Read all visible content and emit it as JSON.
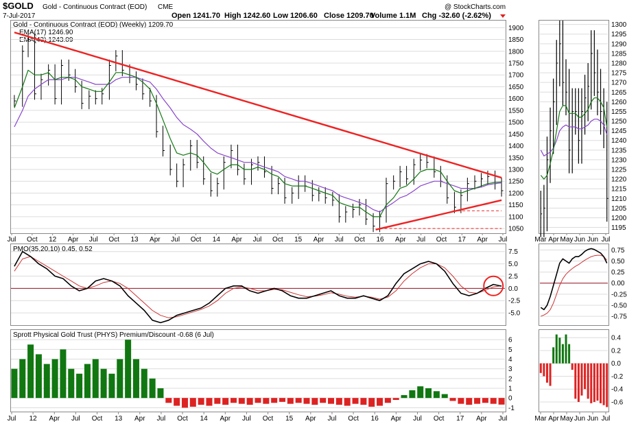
{
  "header": {
    "symbol": "$GOLD",
    "name": "Gold - Continuous Contract (EOD)",
    "exchange": "CME",
    "date": "7-Jul-2017",
    "open": "Open 1241.70",
    "high": "High 1242.60",
    "low": "Low 1206.60",
    "close": "Close 1209.70",
    "volume": "Volume 1.1M",
    "chg": "Chg -32.60 (-2.62%)",
    "watermark": "@ StockCharts.com"
  },
  "chart_data": [
    {
      "type": "line",
      "panel": "price-weekly",
      "title": "Gold - Continuous Contract (EOD) (Weekly) 1209.70",
      "legend": [
        "EMA(17) 1246.90",
        "EMA(43) 1243.09"
      ],
      "y_ticks": [
        1050,
        1100,
        1150,
        1200,
        1250,
        1300,
        1350,
        1400,
        1450,
        1500,
        1550,
        1600,
        1650,
        1700,
        1750,
        1800,
        1850,
        1900
      ],
      "ylim": [
        1030,
        1930
      ],
      "x_labels": [
        "Jul",
        "Oct",
        "12",
        "Apr",
        "Jul",
        "Oct",
        "13",
        "Apr",
        "Jul",
        "Oct",
        "14",
        "Apr",
        "Jul",
        "Oct",
        "15",
        "Apr",
        "Jul",
        "Oct",
        "16",
        "Apr",
        "Jul",
        "Oct",
        "17",
        "Apr",
        "Jul"
      ],
      "x": [
        2011.5,
        2011.6,
        2011.67,
        2011.75,
        2011.83,
        2011.92,
        2012.0,
        2012.08,
        2012.17,
        2012.25,
        2012.33,
        2012.42,
        2012.5,
        2012.58,
        2012.67,
        2012.75,
        2012.83,
        2012.92,
        2013.0,
        2013.08,
        2013.17,
        2013.25,
        2013.33,
        2013.42,
        2013.5,
        2013.58,
        2013.67,
        2013.75,
        2013.83,
        2013.92,
        2014.0,
        2014.08,
        2014.17,
        2014.25,
        2014.33,
        2014.42,
        2014.5,
        2014.58,
        2014.67,
        2014.75,
        2014.83,
        2014.92,
        2015.0,
        2015.08,
        2015.17,
        2015.25,
        2015.33,
        2015.42,
        2015.5,
        2015.58,
        2015.67,
        2015.75,
        2015.83,
        2015.92,
        2016.0,
        2016.08,
        2016.17,
        2016.25,
        2016.33,
        2016.42,
        2016.5,
        2016.58,
        2016.67,
        2016.75,
        2016.83,
        2016.92,
        2017.0,
        2017.08,
        2017.17,
        2017.25,
        2017.33,
        2017.42,
        2017.5
      ],
      "close": [
        1590,
        1800,
        1850,
        1620,
        1680,
        1720,
        1600,
        1740,
        1700,
        1650,
        1580,
        1610,
        1600,
        1620,
        1740,
        1780,
        1720,
        1690,
        1660,
        1620,
        1590,
        1460,
        1380,
        1300,
        1250,
        1320,
        1400,
        1330,
        1260,
        1210,
        1240,
        1330,
        1380,
        1300,
        1260,
        1320,
        1330,
        1290,
        1220,
        1240,
        1180,
        1200,
        1250,
        1230,
        1190,
        1200,
        1180,
        1170,
        1100,
        1120,
        1130,
        1150,
        1090,
        1060,
        1100,
        1240,
        1250,
        1290,
        1260,
        1320,
        1340,
        1330,
        1290,
        1250,
        1180,
        1140,
        1190,
        1240,
        1250,
        1260,
        1270,
        1240,
        1210
      ],
      "ema17": [
        1560,
        1650,
        1720,
        1700,
        1700,
        1710,
        1680,
        1690,
        1690,
        1680,
        1650,
        1640,
        1630,
        1630,
        1670,
        1710,
        1710,
        1700,
        1690,
        1670,
        1640,
        1580,
        1510,
        1430,
        1370,
        1360,
        1370,
        1360,
        1330,
        1290,
        1280,
        1300,
        1320,
        1320,
        1300,
        1300,
        1310,
        1300,
        1280,
        1270,
        1240,
        1230,
        1230,
        1230,
        1220,
        1210,
        1200,
        1190,
        1160,
        1150,
        1140,
        1140,
        1120,
        1100,
        1100,
        1150,
        1180,
        1220,
        1230,
        1260,
        1290,
        1300,
        1300,
        1290,
        1250,
        1210,
        1200,
        1210,
        1220,
        1230,
        1240,
        1245,
        1247
      ],
      "ema43": [
        1480,
        1550,
        1610,
        1640,
        1660,
        1680,
        1680,
        1680,
        1690,
        1690,
        1680,
        1670,
        1660,
        1660,
        1660,
        1680,
        1690,
        1690,
        1690,
        1680,
        1670,
        1640,
        1600,
        1560,
        1520,
        1490,
        1470,
        1450,
        1420,
        1390,
        1370,
        1360,
        1350,
        1340,
        1330,
        1330,
        1320,
        1310,
        1300,
        1290,
        1270,
        1260,
        1250,
        1250,
        1240,
        1230,
        1220,
        1210,
        1190,
        1180,
        1170,
        1160,
        1150,
        1130,
        1120,
        1140,
        1160,
        1180,
        1190,
        1210,
        1230,
        1240,
        1250,
        1250,
        1240,
        1230,
        1220,
        1220,
        1220,
        1225,
        1235,
        1240,
        1243
      ],
      "annotations": [
        {
          "kind": "trendline",
          "from": [
            2011.5,
            1880
          ],
          "to": [
            2017.5,
            1265
          ]
        },
        {
          "kind": "trendline",
          "from": [
            2015.95,
            1045
          ],
          "to": [
            2017.5,
            1170
          ]
        },
        {
          "kind": "hline",
          "y": 1125,
          "from": 2016.9,
          "to": 2017.5
        },
        {
          "kind": "hline",
          "y": 1050,
          "from": 2016.0,
          "to": 2017.5
        }
      ]
    },
    {
      "type": "bar",
      "panel": "price-daily",
      "y_ticks": [
        1195,
        1200,
        1205,
        1210,
        1215,
        1220,
        1225,
        1230,
        1235,
        1240,
        1245,
        1250,
        1255,
        1260,
        1265,
        1270,
        1275,
        1280,
        1285,
        1290,
        1295,
        1300
      ],
      "ylim": [
        1192,
        1302
      ],
      "x_labels": [
        "Mar",
        "Apr",
        "May",
        "Jun",
        "Jun",
        "Jul"
      ],
      "x": [
        0,
        1,
        2,
        3,
        4,
        5,
        6,
        7,
        8,
        9,
        10,
        11,
        12,
        13,
        14,
        15,
        16,
        17,
        18,
        19,
        20,
        21
      ],
      "close": [
        1202,
        1205,
        1230,
        1245,
        1260,
        1280,
        1290,
        1270,
        1265,
        1235,
        1255,
        1255,
        1240,
        1255,
        1262,
        1268,
        1285,
        1275,
        1265,
        1255,
        1248,
        1210
      ],
      "ema17": [
        1222,
        1220,
        1222,
        1228,
        1235,
        1245,
        1255,
        1258,
        1258,
        1254,
        1254,
        1254,
        1252,
        1252,
        1254,
        1256,
        1260,
        1262,
        1262,
        1260,
        1257,
        1247
      ],
      "ema43": [
        1235,
        1232,
        1233,
        1234,
        1236,
        1240,
        1245,
        1247,
        1248,
        1247,
        1247,
        1247,
        1246,
        1246,
        1247,
        1248,
        1250,
        1251,
        1251,
        1250,
        1248,
        1243
      ]
    },
    {
      "type": "line",
      "panel": "pmo-weekly",
      "title": "PMO(35,20,10) 0.45, 0.52",
      "y_ticks": [
        7.5,
        5.0,
        2.5,
        0.0,
        -2.5,
        -5.0
      ],
      "ylim": [
        -7.5,
        9
      ],
      "x": [
        2011.5,
        2011.6,
        2011.7,
        2011.8,
        2011.9,
        2012.0,
        2012.1,
        2012.2,
        2012.3,
        2012.4,
        2012.5,
        2012.6,
        2012.7,
        2012.8,
        2012.9,
        2013.0,
        2013.1,
        2013.2,
        2013.3,
        2013.4,
        2013.5,
        2013.6,
        2013.7,
        2013.8,
        2013.9,
        2014.0,
        2014.1,
        2014.2,
        2014.3,
        2014.4,
        2014.5,
        2014.6,
        2014.7,
        2014.8,
        2014.9,
        2015.0,
        2015.1,
        2015.2,
        2015.3,
        2015.4,
        2015.5,
        2015.6,
        2015.7,
        2015.8,
        2015.9,
        2016.0,
        2016.1,
        2016.2,
        2016.3,
        2016.4,
        2016.5,
        2016.6,
        2016.7,
        2016.8,
        2016.9,
        2017.0,
        2017.1,
        2017.2,
        2017.3,
        2017.4,
        2017.5
      ],
      "pmo": [
        4.5,
        7.5,
        6.5,
        5,
        4,
        2.5,
        2,
        0.5,
        -0.5,
        0,
        1.5,
        2,
        1.5,
        0.5,
        -1.5,
        -3,
        -4.5,
        -6.5,
        -7,
        -6.5,
        -5.5,
        -5,
        -4.5,
        -4,
        -3,
        -1.5,
        0,
        0.5,
        0.5,
        -0.5,
        -1,
        -0.5,
        0,
        -0.5,
        -1.5,
        -2,
        -2,
        -1.5,
        -1,
        -0.5,
        -1.5,
        -2,
        -2,
        -1.5,
        -2,
        -2.5,
        -1.5,
        1,
        3,
        4,
        5,
        5.5,
        5,
        3.5,
        1,
        -1,
        -1.5,
        -1,
        0,
        0.8,
        0.45
      ],
      "signal": [
        3.5,
        6,
        6.5,
        5.5,
        4.5,
        3.5,
        2.5,
        1.5,
        0.5,
        0,
        0.5,
        1.2,
        1.5,
        1,
        0,
        -1.5,
        -3,
        -4.5,
        -5.5,
        -6,
        -5.8,
        -5.3,
        -4.8,
        -4.3,
        -3.6,
        -2.5,
        -1,
        0,
        0.3,
        0,
        -0.5,
        -0.5,
        -0.2,
        -0.3,
        -0.8,
        -1.3,
        -1.7,
        -1.6,
        -1.3,
        -0.9,
        -1.2,
        -1.6,
        -1.8,
        -1.6,
        -1.8,
        -2.2,
        -1.8,
        -0.5,
        1.5,
        3,
        4.2,
        5,
        5,
        4.2,
        2.5,
        0.5,
        -0.8,
        -1,
        -0.4,
        0.3,
        0.52
      ],
      "annotations": [
        {
          "kind": "circle",
          "x": 2017.4,
          "y": 0.5
        }
      ]
    },
    {
      "type": "line",
      "panel": "pmo-daily",
      "y_ticks": [
        0.75,
        0.5,
        0.25,
        0.0,
        -0.25,
        -0.5,
        -0.75
      ],
      "ylim": [
        -0.95,
        0.88
      ],
      "x": [
        0,
        1,
        2,
        3,
        4,
        5,
        6,
        7,
        8,
        9,
        10,
        11,
        12,
        13,
        14,
        15,
        16,
        17,
        18,
        19,
        20,
        21
      ],
      "pmo": [
        -0.55,
        -0.6,
        -0.5,
        -0.3,
        -0.05,
        0.2,
        0.45,
        0.55,
        0.5,
        0.45,
        0.55,
        0.6,
        0.6,
        0.65,
        0.72,
        0.76,
        0.78,
        0.76,
        0.72,
        0.68,
        0.6,
        0.45
      ],
      "signal": [
        -0.75,
        -0.72,
        -0.68,
        -0.6,
        -0.45,
        -0.25,
        -0.05,
        0.1,
        0.2,
        0.27,
        0.33,
        0.38,
        0.42,
        0.47,
        0.52,
        0.56,
        0.6,
        0.62,
        0.63,
        0.63,
        0.6,
        0.52
      ]
    },
    {
      "type": "bar",
      "panel": "phys-weekly",
      "title": "Sprott Physical Gold Trust (PHYS) Premium/Discount -0.68 (6 Jul)",
      "y_ticks": [
        6,
        5,
        4,
        3,
        2,
        1,
        0,
        -1
      ],
      "ylim": [
        -1.4,
        7
      ],
      "x_labels": [
        "Jul",
        "12",
        "Apr",
        "Jul",
        "Oct",
        "13",
        "Apr",
        "Jul",
        "Oct",
        "14",
        "Apr",
        "Jul",
        "Oct",
        "15",
        "Apr",
        "Jul",
        "Oct",
        "16",
        "Apr",
        "Jul",
        "Oct",
        "17",
        "Apr",
        "Jul"
      ],
      "x": [
        2011.5,
        2011.6,
        2011.7,
        2011.8,
        2011.9,
        2012.0,
        2012.1,
        2012.2,
        2012.3,
        2012.4,
        2012.5,
        2012.6,
        2012.7,
        2012.8,
        2012.9,
        2013.0,
        2013.1,
        2013.2,
        2013.3,
        2013.4,
        2013.5,
        2013.6,
        2013.7,
        2013.8,
        2013.9,
        2014.0,
        2014.1,
        2014.2,
        2014.3,
        2014.4,
        2014.5,
        2014.6,
        2014.7,
        2014.8,
        2014.9,
        2015.0,
        2015.1,
        2015.2,
        2015.3,
        2015.4,
        2015.5,
        2015.6,
        2015.7,
        2015.8,
        2015.9,
        2016.0,
        2016.1,
        2016.2,
        2016.3,
        2016.4,
        2016.5,
        2016.6,
        2016.7,
        2016.8,
        2016.9,
        2017.0,
        2017.1,
        2017.2,
        2017.3,
        2017.4,
        2017.5
      ],
      "values": [
        3,
        4,
        5.5,
        4.5,
        3.5,
        4,
        5,
        3,
        2.5,
        3.5,
        4,
        3,
        2.5,
        4,
        6,
        4,
        3,
        2,
        1,
        -0.5,
        -0.8,
        -1,
        -0.9,
        -0.7,
        -0.8,
        -0.6,
        -0.7,
        -0.5,
        -0.6,
        -0.7,
        -0.5,
        -0.6,
        -0.5,
        -0.4,
        -0.6,
        -0.5,
        -0.6,
        -0.7,
        -0.5,
        -0.6,
        -0.7,
        -0.8,
        -0.6,
        -0.7,
        -0.9,
        -0.8,
        -0.5,
        -0.2,
        0.3,
        0.8,
        1.2,
        1,
        0.7,
        0.4,
        -0.3,
        -0.6,
        -0.7,
        -0.6,
        -0.5,
        -0.6,
        -0.68
      ],
      "colors": {
        "positive": "#117711",
        "negative": "#dd2222"
      }
    },
    {
      "type": "bar",
      "panel": "phys-daily",
      "y_ticks": [
        0.4,
        0.2,
        0.0,
        -0.2,
        -0.4,
        -0.6
      ],
      "ylim": [
        -0.75,
        0.52
      ],
      "x_labels": [
        "Mar",
        "Apr",
        "May",
        "Jun",
        "Jun",
        "Jul"
      ],
      "x": [
        0,
        1,
        2,
        3,
        4,
        5,
        6,
        7,
        8,
        9,
        10,
        11,
        12,
        13,
        14,
        15,
        16,
        17,
        18,
        19,
        20,
        21
      ],
      "values": [
        -0.15,
        -0.2,
        -0.3,
        -0.35,
        0.25,
        0.45,
        0.4,
        0.3,
        0.45,
        0.3,
        -0.1,
        -0.55,
        -0.6,
        -0.5,
        -0.4,
        -0.55,
        -0.62,
        -0.6,
        -0.58,
        -0.62,
        -0.65,
        -0.68
      ],
      "colors": {
        "positive": "#117711",
        "negative": "#dd2222"
      }
    }
  ],
  "colors": {
    "trendline": "#ee2222",
    "ema17": "#117711",
    "ema43": "#8844cc",
    "pmo": "#000000",
    "signal": "#cc3333",
    "zero_line": "#991122"
  }
}
